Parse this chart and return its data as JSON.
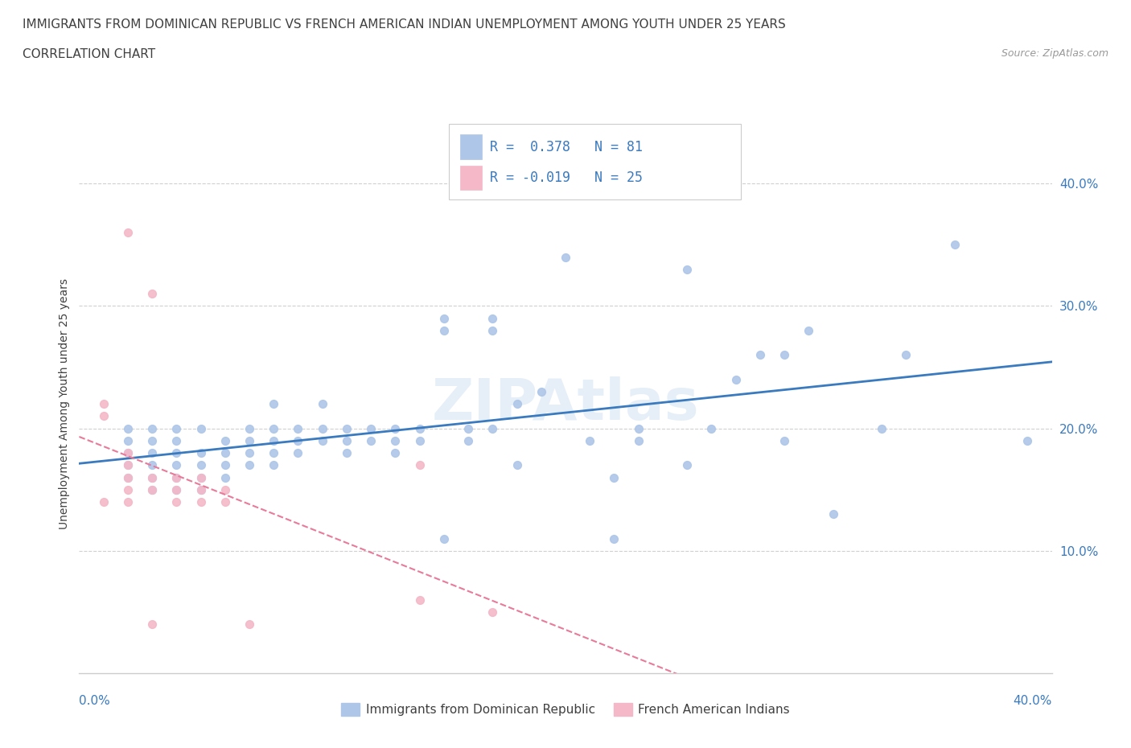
{
  "title_line1": "IMMIGRANTS FROM DOMINICAN REPUBLIC VS FRENCH AMERICAN INDIAN UNEMPLOYMENT AMONG YOUTH UNDER 25 YEARS",
  "title_line2": "CORRELATION CHART",
  "source": "Source: ZipAtlas.com",
  "ylabel": "Unemployment Among Youth under 25 years",
  "legend_blue_label": "Immigrants from Dominican Republic",
  "legend_pink_label": "French American Indians",
  "legend_blue_text": "R =  0.378   N = 81",
  "legend_pink_text": "R = -0.019   N = 25",
  "xlim": [
    0.0,
    0.4
  ],
  "ylim": [
    0.0,
    0.44
  ],
  "blue_scatter": [
    [
      0.02,
      0.16
    ],
    [
      0.02,
      0.17
    ],
    [
      0.02,
      0.18
    ],
    [
      0.02,
      0.19
    ],
    [
      0.02,
      0.2
    ],
    [
      0.03,
      0.15
    ],
    [
      0.03,
      0.16
    ],
    [
      0.03,
      0.17
    ],
    [
      0.03,
      0.18
    ],
    [
      0.03,
      0.19
    ],
    [
      0.03,
      0.2
    ],
    [
      0.04,
      0.15
    ],
    [
      0.04,
      0.16
    ],
    [
      0.04,
      0.17
    ],
    [
      0.04,
      0.18
    ],
    [
      0.04,
      0.19
    ],
    [
      0.04,
      0.2
    ],
    [
      0.05,
      0.15
    ],
    [
      0.05,
      0.16
    ],
    [
      0.05,
      0.17
    ],
    [
      0.05,
      0.18
    ],
    [
      0.05,
      0.2
    ],
    [
      0.06,
      0.16
    ],
    [
      0.06,
      0.17
    ],
    [
      0.06,
      0.18
    ],
    [
      0.06,
      0.19
    ],
    [
      0.07,
      0.17
    ],
    [
      0.07,
      0.18
    ],
    [
      0.07,
      0.19
    ],
    [
      0.07,
      0.2
    ],
    [
      0.08,
      0.17
    ],
    [
      0.08,
      0.18
    ],
    [
      0.08,
      0.19
    ],
    [
      0.08,
      0.2
    ],
    [
      0.08,
      0.22
    ],
    [
      0.09,
      0.18
    ],
    [
      0.09,
      0.19
    ],
    [
      0.09,
      0.2
    ],
    [
      0.1,
      0.19
    ],
    [
      0.1,
      0.2
    ],
    [
      0.1,
      0.22
    ],
    [
      0.11,
      0.18
    ],
    [
      0.11,
      0.19
    ],
    [
      0.11,
      0.2
    ],
    [
      0.12,
      0.19
    ],
    [
      0.12,
      0.2
    ],
    [
      0.13,
      0.18
    ],
    [
      0.13,
      0.19
    ],
    [
      0.13,
      0.2
    ],
    [
      0.14,
      0.19
    ],
    [
      0.14,
      0.2
    ],
    [
      0.15,
      0.29
    ],
    [
      0.15,
      0.28
    ],
    [
      0.15,
      0.11
    ],
    [
      0.16,
      0.19
    ],
    [
      0.16,
      0.2
    ],
    [
      0.17,
      0.28
    ],
    [
      0.17,
      0.29
    ],
    [
      0.17,
      0.2
    ],
    [
      0.18,
      0.22
    ],
    [
      0.18,
      0.17
    ],
    [
      0.19,
      0.23
    ],
    [
      0.2,
      0.34
    ],
    [
      0.21,
      0.19
    ],
    [
      0.22,
      0.11
    ],
    [
      0.22,
      0.16
    ],
    [
      0.23,
      0.2
    ],
    [
      0.23,
      0.19
    ],
    [
      0.25,
      0.33
    ],
    [
      0.25,
      0.17
    ],
    [
      0.26,
      0.2
    ],
    [
      0.27,
      0.24
    ],
    [
      0.28,
      0.26
    ],
    [
      0.29,
      0.26
    ],
    [
      0.29,
      0.19
    ],
    [
      0.3,
      0.28
    ],
    [
      0.31,
      0.13
    ],
    [
      0.33,
      0.2
    ],
    [
      0.34,
      0.26
    ],
    [
      0.36,
      0.35
    ],
    [
      0.39,
      0.19
    ]
  ],
  "pink_scatter": [
    [
      0.01,
      0.14
    ],
    [
      0.01,
      0.21
    ],
    [
      0.01,
      0.22
    ],
    [
      0.02,
      0.14
    ],
    [
      0.02,
      0.15
    ],
    [
      0.02,
      0.16
    ],
    [
      0.02,
      0.17
    ],
    [
      0.02,
      0.18
    ],
    [
      0.02,
      0.36
    ],
    [
      0.03,
      0.04
    ],
    [
      0.03,
      0.15
    ],
    [
      0.03,
      0.16
    ],
    [
      0.03,
      0.31
    ],
    [
      0.04,
      0.14
    ],
    [
      0.04,
      0.15
    ],
    [
      0.04,
      0.16
    ],
    [
      0.05,
      0.14
    ],
    [
      0.05,
      0.15
    ],
    [
      0.05,
      0.16
    ],
    [
      0.06,
      0.14
    ],
    [
      0.06,
      0.15
    ],
    [
      0.07,
      0.04
    ],
    [
      0.14,
      0.06
    ],
    [
      0.14,
      0.17
    ],
    [
      0.17,
      0.05
    ]
  ],
  "blue_color": "#aec6e8",
  "pink_color": "#f4b8c8",
  "blue_line_color": "#3a7abf",
  "pink_line_color": "#e87a9a",
  "grid_color": "#d0d0d0",
  "title_color": "#404040",
  "source_color": "#999999",
  "axis_label_color": "#3a7abf",
  "background_color": "#ffffff"
}
